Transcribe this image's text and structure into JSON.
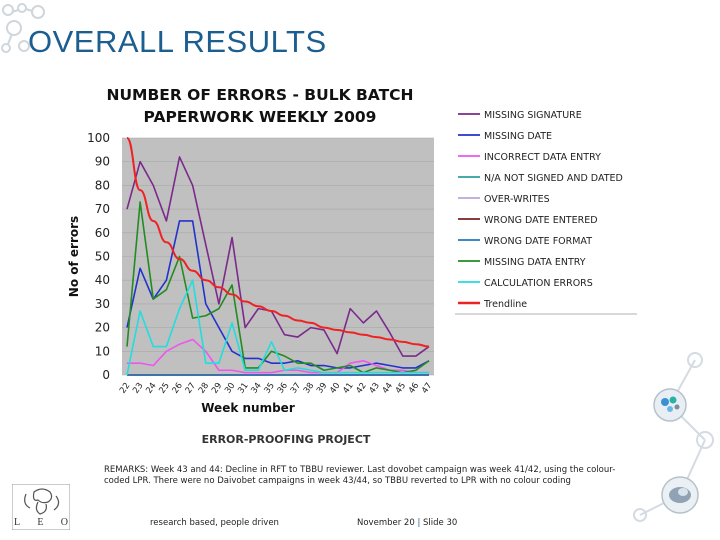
{
  "slide": {
    "title": "OVERALL RESULTS",
    "project_label": "ERROR-PROOFING PROJECT",
    "remarks": "REMARKS: Week 43 and 44: Decline in RFT to TBBU reviewer. Last dovobet campaign was week 41/42, using the colour-coded LPR. There were no Daivobet campaigns in week 43/44, so TBBU reverted to LPR with no colour coding",
    "footer_slogan": "research based, people driven",
    "footer_date": "November 20",
    "footer_separator": "|",
    "footer_slide": "Slide 30",
    "logo_letters": [
      "L",
      "E",
      "O"
    ]
  },
  "colors": {
    "title": "#1b5e8f",
    "plot_bg": "#c0c0c0",
    "missing_signature": "#7b2a8c",
    "missing_date": "#2233cc",
    "incorrect_data_entry": "#ee55ee",
    "na_not_signed": "#2e9e9e",
    "over_writes": "#b8a6d8",
    "wrong_date_entered": "#7a2020",
    "wrong_date_format": "#2277bb",
    "missing_data_entry": "#228b22",
    "calculation_errors": "#22dddd",
    "trendline": "#ee2222"
  },
  "chart_data": {
    "type": "line",
    "title": "NUMBER OF ERRORS - BULK BATCH PAPERWORK WEEKLY 2009",
    "xlabel": "Week number",
    "ylabel": "No of errors",
    "ylim": [
      0,
      100
    ],
    "yticks": [
      0,
      10,
      20,
      30,
      40,
      50,
      60,
      70,
      80,
      90,
      100
    ],
    "categories": [
      "22",
      "23",
      "24",
      "25",
      "26",
      "27",
      "28",
      "29",
      "30",
      "31",
      "34",
      "35",
      "36",
      "37",
      "38",
      "39",
      "40",
      "41",
      "42",
      "43",
      "44",
      "45",
      "46",
      "47"
    ],
    "legend_position": "right",
    "series": [
      {
        "name": "MISSING SIGNATURE",
        "color_key": "missing_signature",
        "values": [
          70,
          90,
          80,
          65,
          92,
          80,
          55,
          30,
          58,
          20,
          28,
          27,
          17,
          16,
          20,
          19,
          9,
          28,
          22,
          27,
          18,
          8,
          8,
          12
        ]
      },
      {
        "name": "MISSING DATE",
        "color_key": "missing_date",
        "values": [
          20,
          45,
          32,
          40,
          65,
          65,
          30,
          20,
          10,
          7,
          7,
          5,
          5,
          6,
          4,
          4,
          3,
          3,
          4,
          5,
          4,
          3,
          3,
          6
        ]
      },
      {
        "name": "INCORRECT DATA ENTRY",
        "color_key": "incorrect_data_entry",
        "values": [
          5,
          5,
          4,
          10,
          13,
          15,
          10,
          2,
          2,
          1,
          1,
          1,
          2,
          2,
          1,
          1,
          1,
          5,
          6,
          4,
          2,
          2,
          1,
          1
        ]
      },
      {
        "name": "N/A NOT SIGNED AND DATED",
        "color_key": "na_not_signed",
        "values": [
          0,
          0,
          0,
          0,
          0,
          0,
          0,
          0,
          0,
          0,
          0,
          0,
          0,
          0,
          0,
          0,
          0,
          0,
          0,
          0,
          0,
          0,
          0,
          0
        ]
      },
      {
        "name": "OVER-WRITES",
        "color_key": "over_writes",
        "values": [
          0,
          0,
          0,
          0,
          0,
          0,
          0,
          0,
          0,
          0,
          0,
          0,
          0,
          0,
          0,
          0,
          0,
          0,
          0,
          0,
          0,
          0,
          0,
          0
        ]
      },
      {
        "name": "WRONG DATE ENTERED",
        "color_key": "wrong_date_entered",
        "values": [
          0,
          0,
          0,
          0,
          0,
          0,
          0,
          0,
          0,
          0,
          0,
          0,
          0,
          0,
          0,
          0,
          0,
          0,
          0,
          0,
          0,
          0,
          0,
          0
        ]
      },
      {
        "name": "WRONG DATE FORMAT",
        "color_key": "wrong_date_format",
        "values": [
          0,
          0,
          0,
          0,
          0,
          0,
          0,
          0,
          0,
          0,
          0,
          0,
          0,
          0,
          0,
          0,
          0,
          0,
          0,
          0,
          0,
          0,
          0,
          0
        ]
      },
      {
        "name": "MISSING DATA ENTRY",
        "color_key": "missing_data_entry",
        "values": [
          12,
          73,
          32,
          36,
          50,
          24,
          25,
          28,
          38,
          3,
          3,
          10,
          8,
          5,
          5,
          2,
          3,
          4,
          1,
          3,
          2,
          1,
          2,
          6
        ]
      },
      {
        "name": "CALCULATION ERRORS",
        "color_key": "calculation_errors",
        "values": [
          0,
          27,
          12,
          12,
          28,
          40,
          5,
          5,
          22,
          2,
          2,
          14,
          2,
          3,
          2,
          1,
          1,
          1,
          1,
          1,
          1,
          1,
          1,
          1
        ]
      },
      {
        "name": "Trendline",
        "color_key": "trendline",
        "values": [
          100,
          78,
          65,
          56,
          49,
          44,
          40,
          37,
          34,
          31,
          29,
          27,
          25,
          23,
          22,
          20,
          19,
          18,
          17,
          16,
          15,
          14,
          13,
          12
        ]
      }
    ]
  }
}
